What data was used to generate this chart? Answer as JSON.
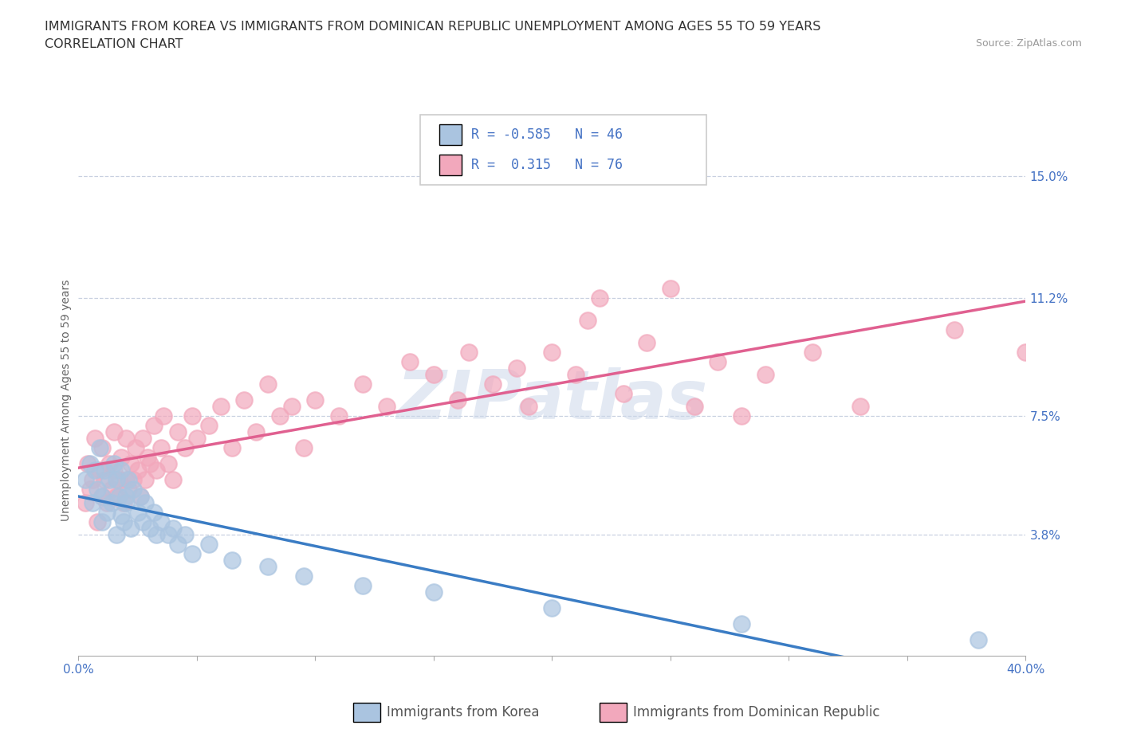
{
  "title_line1": "IMMIGRANTS FROM KOREA VS IMMIGRANTS FROM DOMINICAN REPUBLIC UNEMPLOYMENT AMONG AGES 55 TO 59 YEARS",
  "title_line2": "CORRELATION CHART",
  "source": "Source: ZipAtlas.com",
  "ylabel": "Unemployment Among Ages 55 to 59 years",
  "xlim": [
    0.0,
    0.4
  ],
  "ylim": [
    0.0,
    0.16
  ],
  "xticks": [
    0.0,
    0.05,
    0.1,
    0.15,
    0.2,
    0.25,
    0.3,
    0.35,
    0.4
  ],
  "xticklabels": [
    "0.0%",
    "",
    "",
    "",
    "",
    "",
    "",
    "",
    "40.0%"
  ],
  "yticks_right": [
    0.0,
    0.038,
    0.075,
    0.112,
    0.15
  ],
  "yticks_right_labels": [
    "",
    "3.8%",
    "7.5%",
    "11.2%",
    "15.0%"
  ],
  "grid_yticks": [
    0.038,
    0.075,
    0.112,
    0.15
  ],
  "korea_R": -0.585,
  "korea_N": 46,
  "dr_R": 0.315,
  "dr_N": 76,
  "korea_color": "#aac4e0",
  "dr_color": "#f2a8bc",
  "korea_line_color": "#3a7cc4",
  "dr_line_color": "#e06090",
  "korea_scatter_x": [
    0.003,
    0.005,
    0.006,
    0.007,
    0.008,
    0.009,
    0.01,
    0.01,
    0.011,
    0.012,
    0.013,
    0.014,
    0.015,
    0.016,
    0.016,
    0.017,
    0.018,
    0.018,
    0.019,
    0.02,
    0.02,
    0.021,
    0.022,
    0.023,
    0.025,
    0.026,
    0.027,
    0.028,
    0.03,
    0.032,
    0.033,
    0.035,
    0.038,
    0.04,
    0.042,
    0.045,
    0.048,
    0.055,
    0.065,
    0.08,
    0.095,
    0.12,
    0.15,
    0.2,
    0.28,
    0.38
  ],
  "korea_scatter_y": [
    0.055,
    0.06,
    0.048,
    0.058,
    0.052,
    0.065,
    0.042,
    0.05,
    0.058,
    0.045,
    0.055,
    0.048,
    0.06,
    0.038,
    0.055,
    0.05,
    0.044,
    0.058,
    0.042,
    0.05,
    0.048,
    0.055,
    0.04,
    0.052,
    0.045,
    0.05,
    0.042,
    0.048,
    0.04,
    0.045,
    0.038,
    0.042,
    0.038,
    0.04,
    0.035,
    0.038,
    0.032,
    0.035,
    0.03,
    0.028,
    0.025,
    0.022,
    0.02,
    0.015,
    0.01,
    0.005
  ],
  "dr_scatter_x": [
    0.003,
    0.004,
    0.005,
    0.006,
    0.007,
    0.008,
    0.009,
    0.01,
    0.01,
    0.011,
    0.012,
    0.013,
    0.014,
    0.015,
    0.015,
    0.016,
    0.017,
    0.018,
    0.019,
    0.02,
    0.02,
    0.021,
    0.022,
    0.023,
    0.024,
    0.025,
    0.026,
    0.027,
    0.028,
    0.029,
    0.03,
    0.032,
    0.033,
    0.035,
    0.036,
    0.038,
    0.04,
    0.042,
    0.045,
    0.048,
    0.05,
    0.055,
    0.06,
    0.065,
    0.07,
    0.075,
    0.08,
    0.085,
    0.09,
    0.095,
    0.1,
    0.11,
    0.12,
    0.13,
    0.14,
    0.15,
    0.16,
    0.165,
    0.175,
    0.185,
    0.19,
    0.2,
    0.21,
    0.215,
    0.22,
    0.23,
    0.24,
    0.25,
    0.26,
    0.27,
    0.28,
    0.29,
    0.31,
    0.33,
    0.37,
    0.4
  ],
  "dr_scatter_y": [
    0.048,
    0.06,
    0.052,
    0.055,
    0.068,
    0.042,
    0.058,
    0.05,
    0.065,
    0.055,
    0.048,
    0.06,
    0.052,
    0.058,
    0.07,
    0.05,
    0.055,
    0.062,
    0.048,
    0.055,
    0.068,
    0.052,
    0.06,
    0.055,
    0.065,
    0.058,
    0.05,
    0.068,
    0.055,
    0.062,
    0.06,
    0.072,
    0.058,
    0.065,
    0.075,
    0.06,
    0.055,
    0.07,
    0.065,
    0.075,
    0.068,
    0.072,
    0.078,
    0.065,
    0.08,
    0.07,
    0.085,
    0.075,
    0.078,
    0.065,
    0.08,
    0.075,
    0.085,
    0.078,
    0.092,
    0.088,
    0.08,
    0.095,
    0.085,
    0.09,
    0.078,
    0.095,
    0.088,
    0.105,
    0.112,
    0.082,
    0.098,
    0.115,
    0.078,
    0.092,
    0.075,
    0.088,
    0.095,
    0.078,
    0.102,
    0.095
  ],
  "background_color": "#ffffff",
  "title_fontsize": 11.5,
  "axis_label_fontsize": 10,
  "tick_fontsize": 11,
  "legend_fontsize": 12
}
